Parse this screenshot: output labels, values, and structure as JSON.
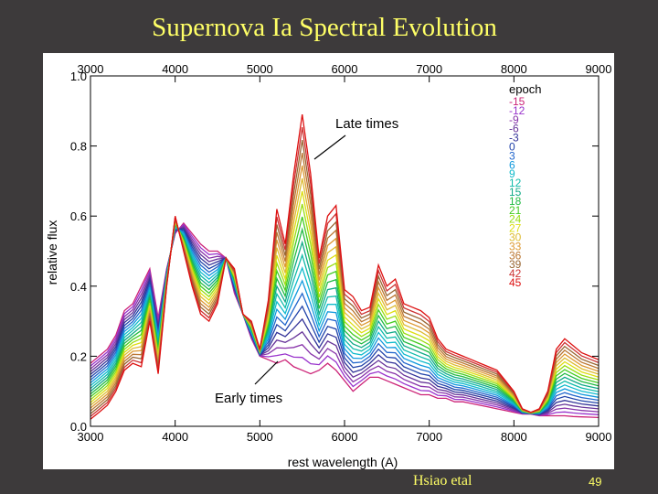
{
  "slide": {
    "title": "Supernova Ia Spectral Evolution",
    "credit": "Hsiao etal",
    "page_number": "49"
  },
  "colors": {
    "background": "#3d3a3b",
    "title": "#ffff66",
    "plot_bg": "#ffffff"
  },
  "chart_data": {
    "type": "line",
    "title": "",
    "xlabel": "rest wavelength (A)",
    "ylabel": "relative flux",
    "xlim": [
      3000,
      9000
    ],
    "ylim": [
      0.0,
      1.0
    ],
    "x_ticks": [
      3000,
      4000,
      5000,
      6000,
      7000,
      8000,
      9000
    ],
    "y_ticks": [
      0.0,
      0.2,
      0.4,
      0.6,
      0.8,
      1.0
    ],
    "y_tick_labels": [
      "0.0",
      "0.2",
      "0.4",
      "0.6",
      "0.8",
      "1.0"
    ],
    "grid": false,
    "legend_title": "epoch",
    "legend_position": "top-right",
    "annotations": [
      {
        "text": "Late times",
        "points_to": [
          5600,
          0.75
        ]
      },
      {
        "text": "Early times",
        "points_to": [
          5200,
          0.18
        ]
      }
    ],
    "template": {
      "x": [
        3000,
        3100,
        3200,
        3300,
        3400,
        3500,
        3600,
        3700,
        3800,
        3900,
        4000,
        4100,
        4200,
        4300,
        4400,
        4500,
        4600,
        4700,
        4800,
        4900,
        5000,
        5100,
        5200,
        5300,
        5400,
        5500,
        5600,
        5700,
        5800,
        5900,
        6000,
        6100,
        6200,
        6300,
        6400,
        6500,
        6600,
        6700,
        6800,
        6900,
        7000,
        7100,
        7200,
        7300,
        7400,
        7500,
        7600,
        7700,
        7800,
        7900,
        8000,
        8100,
        8200,
        8300,
        8400,
        8500,
        8600,
        8700,
        8800,
        8900,
        9000
      ],
      "early": [
        0.18,
        0.2,
        0.22,
        0.26,
        0.33,
        0.35,
        0.4,
        0.45,
        0.31,
        0.45,
        0.55,
        0.58,
        0.55,
        0.52,
        0.5,
        0.5,
        0.48,
        0.38,
        0.32,
        0.25,
        0.2,
        0.19,
        0.18,
        0.19,
        0.17,
        0.16,
        0.15,
        0.16,
        0.18,
        0.16,
        0.13,
        0.1,
        0.12,
        0.14,
        0.14,
        0.13,
        0.12,
        0.11,
        0.1,
        0.09,
        0.09,
        0.08,
        0.08,
        0.07,
        0.07,
        0.065,
        0.06,
        0.055,
        0.05,
        0.045,
        0.04,
        0.035,
        0.035,
        0.03,
        0.03,
        0.03,
        0.03,
        0.028,
        0.027,
        0.026,
        0.025
      ],
      "late": [
        0.02,
        0.04,
        0.06,
        0.1,
        0.16,
        0.18,
        0.17,
        0.3,
        0.15,
        0.4,
        0.6,
        0.5,
        0.4,
        0.32,
        0.3,
        0.35,
        0.48,
        0.45,
        0.32,
        0.3,
        0.22,
        0.36,
        0.62,
        0.52,
        0.72,
        0.89,
        0.72,
        0.48,
        0.6,
        0.63,
        0.39,
        0.37,
        0.33,
        0.34,
        0.46,
        0.4,
        0.42,
        0.35,
        0.34,
        0.33,
        0.31,
        0.25,
        0.22,
        0.21,
        0.2,
        0.19,
        0.18,
        0.17,
        0.16,
        0.13,
        0.1,
        0.05,
        0.04,
        0.05,
        0.1,
        0.22,
        0.25,
        0.23,
        0.21,
        0.2,
        0.19
      ]
    },
    "series": [
      {
        "name": "-15",
        "epoch": -15,
        "color": "#cc2277"
      },
      {
        "name": "-12",
        "epoch": -12,
        "color": "#9933cc"
      },
      {
        "name": "-9",
        "epoch": -9,
        "color": "#8833aa"
      },
      {
        "name": "-6",
        "epoch": -6,
        "color": "#663399"
      },
      {
        "name": "-3",
        "epoch": -3,
        "color": "#333399"
      },
      {
        "name": "0",
        "epoch": 0,
        "color": "#2244aa"
      },
      {
        "name": "3",
        "epoch": 3,
        "color": "#2266cc"
      },
      {
        "name": "6",
        "epoch": 6,
        "color": "#1199dd"
      },
      {
        "name": "9",
        "epoch": 9,
        "color": "#11bbcc"
      },
      {
        "name": "12",
        "epoch": 12,
        "color": "#11bbaa"
      },
      {
        "name": "15",
        "epoch": 15,
        "color": "#11aa88"
      },
      {
        "name": "18",
        "epoch": 18,
        "color": "#22bb44"
      },
      {
        "name": "21",
        "epoch": 21,
        "color": "#44cc22"
      },
      {
        "name": "24",
        "epoch": 24,
        "color": "#99dd11"
      },
      {
        "name": "27",
        "epoch": 27,
        "color": "#dddd11"
      },
      {
        "name": "30",
        "epoch": 30,
        "color": "#ddbb33"
      },
      {
        "name": "33",
        "epoch": 33,
        "color": "#dd9933"
      },
      {
        "name": "36",
        "epoch": 36,
        "color": "#bb7733"
      },
      {
        "name": "39",
        "epoch": 39,
        "color": "#996633"
      },
      {
        "name": "42",
        "epoch": 42,
        "color": "#cc3333"
      },
      {
        "name": "45",
        "epoch": 45,
        "color": "#dd1111"
      }
    ]
  }
}
